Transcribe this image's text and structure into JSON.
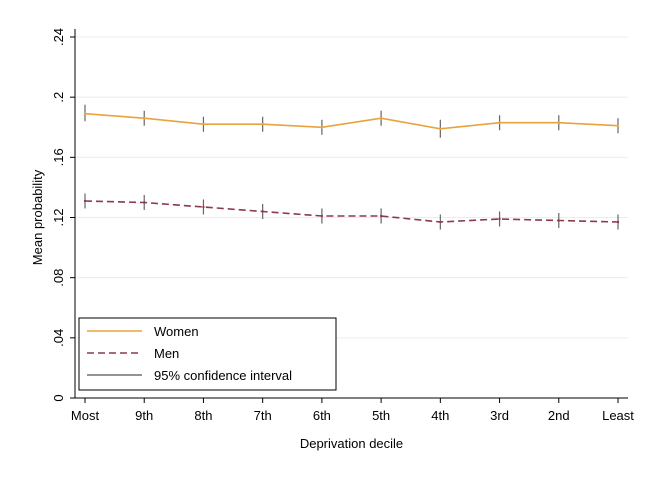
{
  "chart_data": {
    "type": "line",
    "xlabel": "Deprivation decile",
    "ylabel": "Mean probability",
    "categories": [
      "Most",
      "9th",
      "8th",
      "7th",
      "6th",
      "5th",
      "4th",
      "3rd",
      "2nd",
      "Least"
    ],
    "yticks": [
      0,
      0.04,
      0.08,
      0.12,
      0.16,
      0.2,
      0.24
    ],
    "ytick_labels": [
      "0",
      ".04",
      ".08",
      ".12",
      ".16",
      ".2",
      ".24"
    ],
    "ylim": [
      0,
      0.24
    ],
    "grid": true,
    "legend_position": "bottom-left",
    "series": [
      {
        "name": "Women",
        "color": "#e8a33a",
        "style": "solid",
        "values": [
          0.189,
          0.186,
          0.182,
          0.182,
          0.18,
          0.186,
          0.179,
          0.183,
          0.183,
          0.181
        ],
        "ci": [
          [
            0.184,
            0.195
          ],
          [
            0.181,
            0.191
          ],
          [
            0.177,
            0.187
          ],
          [
            0.177,
            0.187
          ],
          [
            0.175,
            0.185
          ],
          [
            0.181,
            0.191
          ],
          [
            0.173,
            0.185
          ],
          [
            0.178,
            0.188
          ],
          [
            0.178,
            0.188
          ],
          [
            0.176,
            0.186
          ]
        ]
      },
      {
        "name": "Men",
        "color": "#8b3a4a",
        "style": "dashed",
        "values": [
          0.131,
          0.13,
          0.127,
          0.124,
          0.121,
          0.121,
          0.117,
          0.119,
          0.118,
          0.117
        ],
        "ci": [
          [
            0.126,
            0.136
          ],
          [
            0.125,
            0.135
          ],
          [
            0.122,
            0.132
          ],
          [
            0.119,
            0.129
          ],
          [
            0.116,
            0.126
          ],
          [
            0.116,
            0.126
          ],
          [
            0.112,
            0.122
          ],
          [
            0.114,
            0.124
          ],
          [
            0.113,
            0.123
          ],
          [
            0.112,
            0.122
          ]
        ]
      }
    ],
    "legend": [
      {
        "label": "Women",
        "color": "#e8a33a",
        "style": "solid"
      },
      {
        "label": "Men",
        "color": "#8b3a4a",
        "style": "dashed"
      },
      {
        "label": "95% confidence interval",
        "color": "#555555",
        "style": "solid"
      }
    ]
  }
}
